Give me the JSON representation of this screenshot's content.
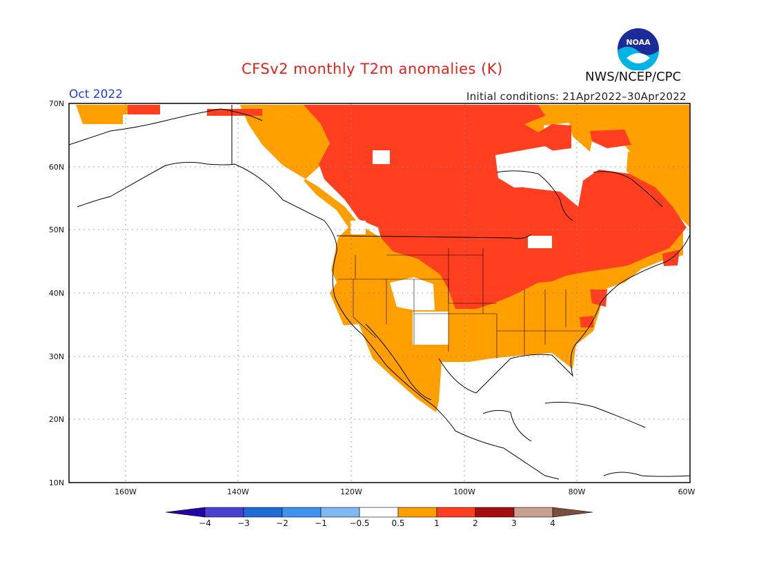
{
  "header": {
    "title": "CFSv2 monthly T2m anomalies (K)",
    "period": "Oct 2022",
    "initial_conditions": "Initial conditions: 21Apr2022–30Apr2022",
    "agency": "NWS/NCEP/CPC",
    "logo_text": "NOAA"
  },
  "map": {
    "region": "North America",
    "lat_labels": [
      "70N",
      "60N",
      "50N",
      "40N",
      "30N",
      "20N",
      "10N"
    ],
    "lon_labels": [
      "160W",
      "140W",
      "120W",
      "100W",
      "80W",
      "60W"
    ],
    "lat_values": [
      70,
      60,
      50,
      40,
      30,
      20,
      10
    ],
    "lon_values": [
      -160,
      -140,
      -120,
      -100,
      -80,
      -60
    ],
    "lon_range": [
      -170,
      -60
    ],
    "lat_range": [
      10,
      70
    ],
    "gridlines": "dotted",
    "colors": {
      "anom_0_5_to_1": "#ff9f00",
      "anom_1_to_2": "#ff3f1f",
      "coastline": "#000000"
    }
  },
  "legend": {
    "ticks": [
      "−4",
      "−3",
      "−2",
      "−1",
      "−0.5",
      "0.5",
      "1",
      "2",
      "3",
      "4"
    ],
    "colors": [
      "#2400a8",
      "#4a3fd1",
      "#1f6bd6",
      "#3f93f0",
      "#7eb9f5",
      "#ffffff",
      "#ff9f00",
      "#ff3f1f",
      "#a30f0f",
      "#c9a090",
      "#7a4f3f"
    ]
  }
}
